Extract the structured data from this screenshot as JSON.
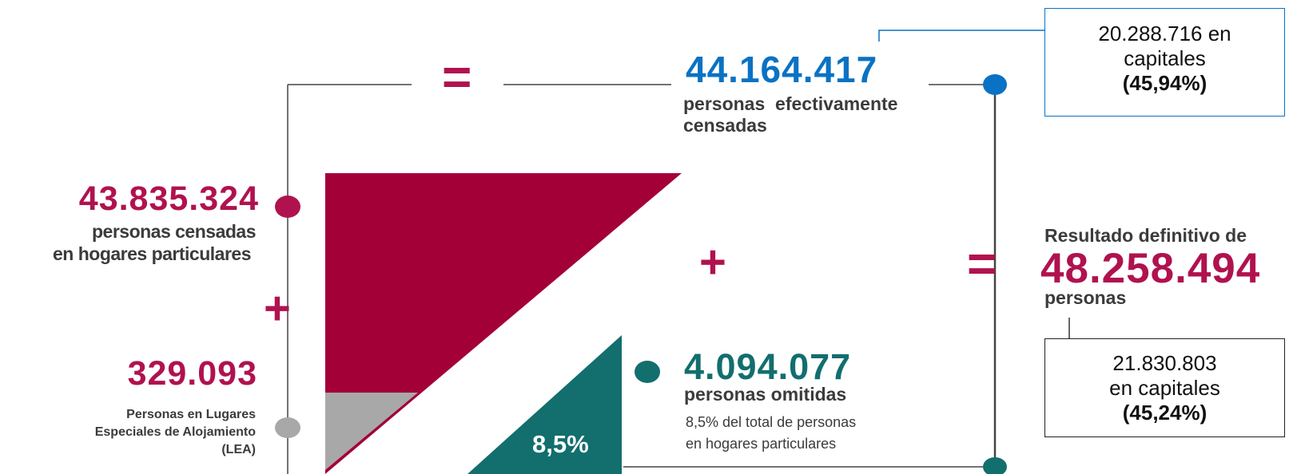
{
  "top": {
    "equals_symbol": "=",
    "number": "44.164.417",
    "label_line1": "personas  efectivamente",
    "label_line2": "censadas"
  },
  "capitales_top": {
    "line1": "20.288.716 en",
    "line2": "capitales",
    "line3": "(45,94%)"
  },
  "hogares": {
    "number": "43.835.324",
    "label_line1": "personas censadas",
    "label_line2": "en hogares particulares"
  },
  "lea": {
    "number": "329.093",
    "label_line1": "Personas en Lugares",
    "label_line2": "Especiales de Alojamiento",
    "label_line3": "(LEA)"
  },
  "plus_symbol": "+",
  "omitidas": {
    "number": "4.094.077",
    "label": "personas omitidas",
    "note_line1": "8,5% del total de personas",
    "note_line2": "en hogares particulares",
    "percent": "8,5%"
  },
  "resultado": {
    "equals_symbol": "=",
    "heading": "Resultado definitivo de",
    "number": "48.258.494",
    "unit": "personas"
  },
  "capitales_bottom": {
    "line1": "21.830.803",
    "line2": "en capitales",
    "line3": "(45,24%)"
  },
  "colors": {
    "maroon": "#a30037",
    "maroon_text": "#b0124f",
    "blue": "#0a72c4",
    "teal": "#136e6e",
    "gray": "#a8a8a8"
  }
}
